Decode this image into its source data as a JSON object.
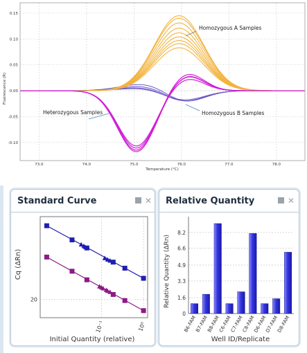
{
  "melt_chart": {
    "type": "line",
    "xlabel": "Temperature (°C)",
    "ylabel": "Fluorescence (R)",
    "xlim": [
      72.6,
      78.6
    ],
    "ylim": [
      -0.135,
      0.17
    ],
    "x_ticks": [
      "73.0",
      "74.0",
      "75.0",
      "76.0",
      "77.0",
      "78.0"
    ],
    "x_tick_values": [
      73,
      74,
      75,
      76,
      77,
      78
    ],
    "y_ticks": [
      "0.15",
      "0.10",
      "0.05",
      "0.00",
      "-0.05",
      "-0.10"
    ],
    "y_tick_values": [
      0.15,
      0.1,
      0.05,
      0.0,
      -0.05,
      -0.1
    ],
    "grid": true,
    "annotations": {
      "homA": "Homozygous A Samples",
      "het": "Heterozygous Samples",
      "homB": "Homozygous B Samples"
    },
    "groups": [
      {
        "color": "#f2b33d",
        "center": 75.95,
        "width": 0.52,
        "peaks": [
          0.145,
          0.14,
          0.131,
          0.121,
          0.112,
          0.104,
          0.097,
          0.091,
          0.083
        ]
      },
      {
        "color": "#d01ed8",
        "dip_center": 75.05,
        "dip_width": 0.4,
        "dips": [
          -0.118,
          -0.115,
          -0.111,
          -0.107
        ],
        "peak_center": 76.12,
        "peak_width": 0.35,
        "peaks": [
          0.03,
          0.034,
          0.029,
          0.024
        ]
      },
      {
        "color": "#6a55c8",
        "dip_center": 76.0,
        "dip_width": 0.45,
        "dips": [
          -0.035,
          -0.031,
          -0.028,
          -0.024
        ],
        "peak_center": 75.55,
        "peak_width": 0.6,
        "peaks": [
          0.022,
          0.016,
          0.012,
          0.009
        ]
      }
    ]
  },
  "standard_curve": {
    "title": "Standard Curve",
    "type": "scatter",
    "xlabel": "Initial Quantity (relative)",
    "ylabel": "Cq (ΔRn)",
    "x_ticks": [
      "10⁻¹",
      "10⁰"
    ],
    "y_ticks": [
      "20"
    ],
    "series": [
      {
        "color": "#1f1fb0",
        "line": [
          0.005,
          27.3,
          1.0,
          22.1
        ],
        "squares": [
          [
            0.005,
            27.3
          ],
          [
            0.02,
            25.9
          ],
          [
            0.045,
            25.1
          ],
          [
            0.19,
            23.7
          ],
          [
            0.36,
            23.1
          ],
          [
            1.0,
            22.1
          ]
        ],
        "triangles": [
          [
            0.033,
            25.45
          ],
          [
            0.038,
            25.3
          ],
          [
            0.041,
            25.2
          ],
          [
            0.12,
            24.1
          ],
          [
            0.14,
            23.95
          ],
          [
            0.16,
            23.85
          ]
        ]
      },
      {
        "color": "#8d1a86",
        "line": [
          0.005,
          24.2,
          1.0,
          18.9
        ],
        "squares": [
          [
            0.005,
            24.2
          ],
          [
            0.02,
            22.8
          ],
          [
            0.045,
            21.95
          ],
          [
            0.19,
            20.5
          ],
          [
            0.36,
            19.9
          ],
          [
            1.0,
            18.9
          ]
        ],
        "triangles": [
          [
            0.09,
            21.3
          ],
          [
            0.1,
            21.2
          ],
          [
            0.11,
            21.1
          ],
          [
            0.13,
            20.95
          ],
          [
            0.14,
            20.85
          ],
          [
            0.16,
            20.75
          ]
        ]
      }
    ]
  },
  "relative_quantity": {
    "title": "Relative Quantity",
    "type": "bar",
    "xlabel": "Well ID/Replicate",
    "ylabel": "Relative Quantity (ΔRn)",
    "ylim": [
      0,
      9.8
    ],
    "y_ticks": [
      "0",
      "1.6",
      "3.3",
      "4.9",
      "6.6",
      "8.2"
    ],
    "y_tick_values": [
      0,
      1.6,
      3.3,
      4.9,
      6.6,
      8.2
    ],
    "categories": [
      "B6-FAM",
      "B7-FAM",
      "B8-FAM",
      "C6-FAM",
      "C7-FAM",
      "C8-FAM",
      "D6-FAM",
      "D7-FAM",
      "D8-FAM"
    ],
    "values": [
      1.0,
      1.95,
      9.1,
      1.0,
      2.2,
      8.1,
      1.0,
      1.5,
      6.2
    ],
    "bar_color": "#3a3ae6"
  }
}
